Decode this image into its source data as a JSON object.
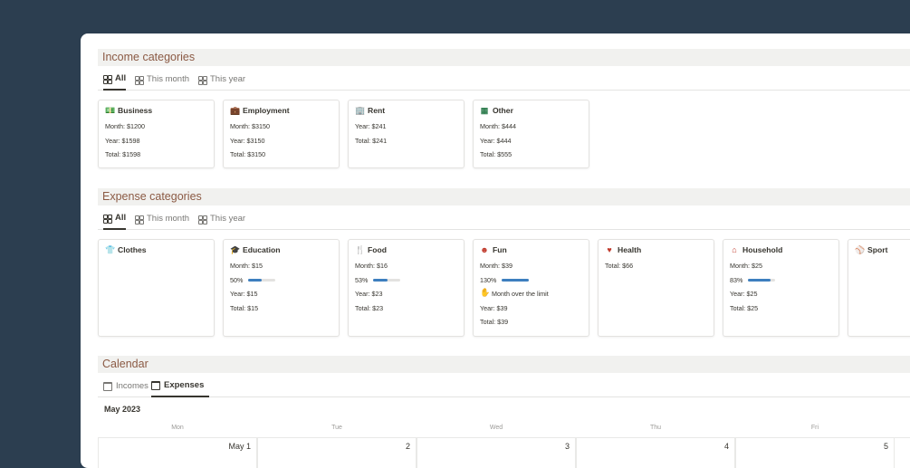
{
  "income": {
    "title": "Income categories",
    "tabs": [
      "All",
      "This month",
      "This year"
    ],
    "cards": [
      {
        "icon": "money-icon",
        "glyph": "💵",
        "color": "#2f7d4f",
        "title": "Business",
        "lines": [
          "Month: $1200",
          "Year: $1598",
          "Total: $1598"
        ]
      },
      {
        "icon": "briefcase-icon",
        "glyph": "💼",
        "color": "#2f7d4f",
        "title": "Employment",
        "lines": [
          "Month: $3150",
          "Year: $3150",
          "Total: $3150"
        ]
      },
      {
        "icon": "building-icon",
        "glyph": "🏢",
        "color": "#2f7d4f",
        "title": "Rent",
        "lines": [
          "Year: $241",
          "Total: $241"
        ]
      },
      {
        "icon": "grid-icon",
        "glyph": "▦",
        "color": "#2f7d4f",
        "title": "Other",
        "lines": [
          "Month: $444",
          "Year: $444",
          "Total: $555"
        ]
      }
    ]
  },
  "expense": {
    "title": "Expense categories",
    "tabs": [
      "All",
      "This month",
      "This year"
    ],
    "cards": [
      {
        "icon": "shirt-icon",
        "glyph": "👕",
        "title": "Clothes"
      },
      {
        "icon": "graduation-cap-icon",
        "glyph": "🎓",
        "title": "Education",
        "month": "Month: $15",
        "pct": "50%",
        "pct_value": 0.5,
        "year": "Year: $15",
        "total": "Total: $15"
      },
      {
        "icon": "utensils-icon",
        "glyph": "🍴",
        "title": "Food",
        "month": "Month: $16",
        "pct": "53%",
        "pct_value": 0.53,
        "year": "Year: $23",
        "total": "Total: $23"
      },
      {
        "icon": "smile-icon",
        "glyph": "☻",
        "title": "Fun",
        "month": "Month: $39",
        "pct": "130%",
        "pct_value": 1.0,
        "warning": "Month over the limit",
        "year": "Year: $39",
        "total": "Total: $39"
      },
      {
        "icon": "heart-icon",
        "glyph": "♥",
        "title": "Health",
        "total": "Total: $66"
      },
      {
        "icon": "home-icon",
        "glyph": "⌂",
        "title": "Household",
        "month": "Month: $25",
        "pct": "83%",
        "pct_value": 0.83,
        "year": "Year: $25",
        "total": "Total: $25"
      },
      {
        "icon": "baseball-icon",
        "glyph": "⚾",
        "title": "Sport"
      }
    ],
    "expense_icon_color": "#c0392b",
    "bar_color": "#3d7fbf"
  },
  "calendar": {
    "title": "Calendar",
    "tabs": [
      "Incomes",
      "Expenses"
    ],
    "month": "May 2023",
    "weekdays": [
      "Mon",
      "Tue",
      "Wed",
      "Thu",
      "Fri"
    ],
    "dates": [
      "May 1",
      "2",
      "3",
      "4",
      "5"
    ]
  }
}
